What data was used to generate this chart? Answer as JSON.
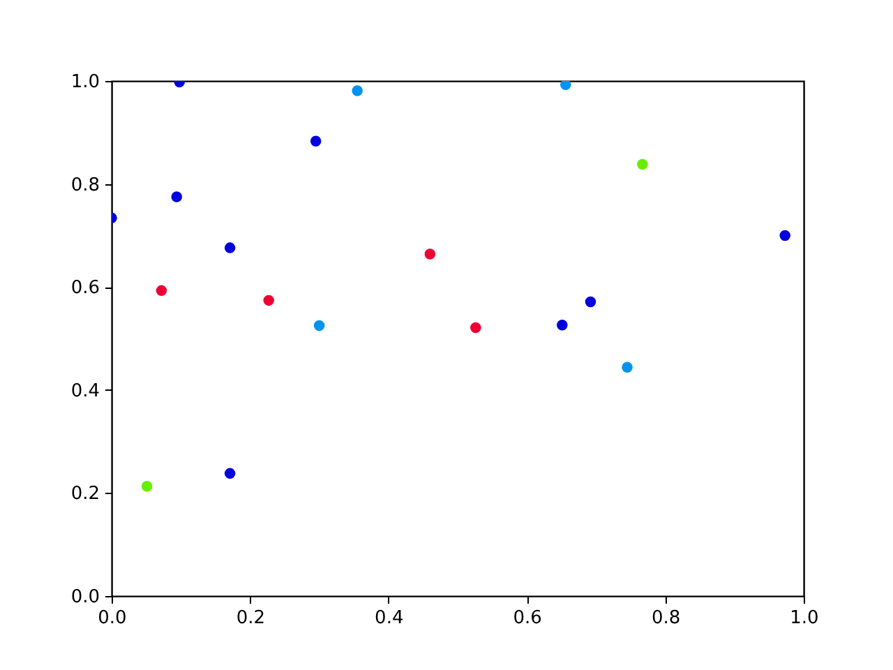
{
  "chart_data": {
    "type": "scatter",
    "marker": "circle",
    "grid": false,
    "legend": false,
    "xlim": [
      0,
      1
    ],
    "ylim": [
      0,
      1
    ],
    "xticks": [
      {
        "value": 0,
        "label": "0.0"
      },
      0.2,
      0.4,
      0.6,
      0.8,
      {
        "value": 1,
        "label": "1.0"
      }
    ],
    "yticks": [
      {
        "value": 0,
        "label": "0.0"
      },
      0.2,
      0.4,
      0.6,
      0.8,
      {
        "value": 1,
        "label": "1.0"
      }
    ],
    "series": [
      {
        "color": "#0000dd",
        "x": [
          0.098,
          0.295,
          0.094,
          0.0,
          0.171,
          0.973,
          0.692,
          0.651,
          0.171
        ],
        "values": [
          0.998,
          0.883,
          0.775,
          0.734,
          0.676,
          0.7,
          0.571,
          0.526,
          0.238
        ]
      },
      {
        "color": "#0094f0",
        "x": [
          0.355,
          0.656,
          0.3,
          0.745
        ],
        "values": [
          0.981,
          0.993,
          0.525,
          0.444
        ]
      },
      {
        "color": "#ee0033",
        "x": [
          0.072,
          0.227,
          0.46,
          0.526
        ],
        "values": [
          0.593,
          0.574,
          0.664,
          0.521
        ]
      },
      {
        "color": "#66ee00",
        "x": [
          0.767,
          0.051
        ],
        "values": [
          0.838,
          0.213
        ]
      }
    ]
  }
}
